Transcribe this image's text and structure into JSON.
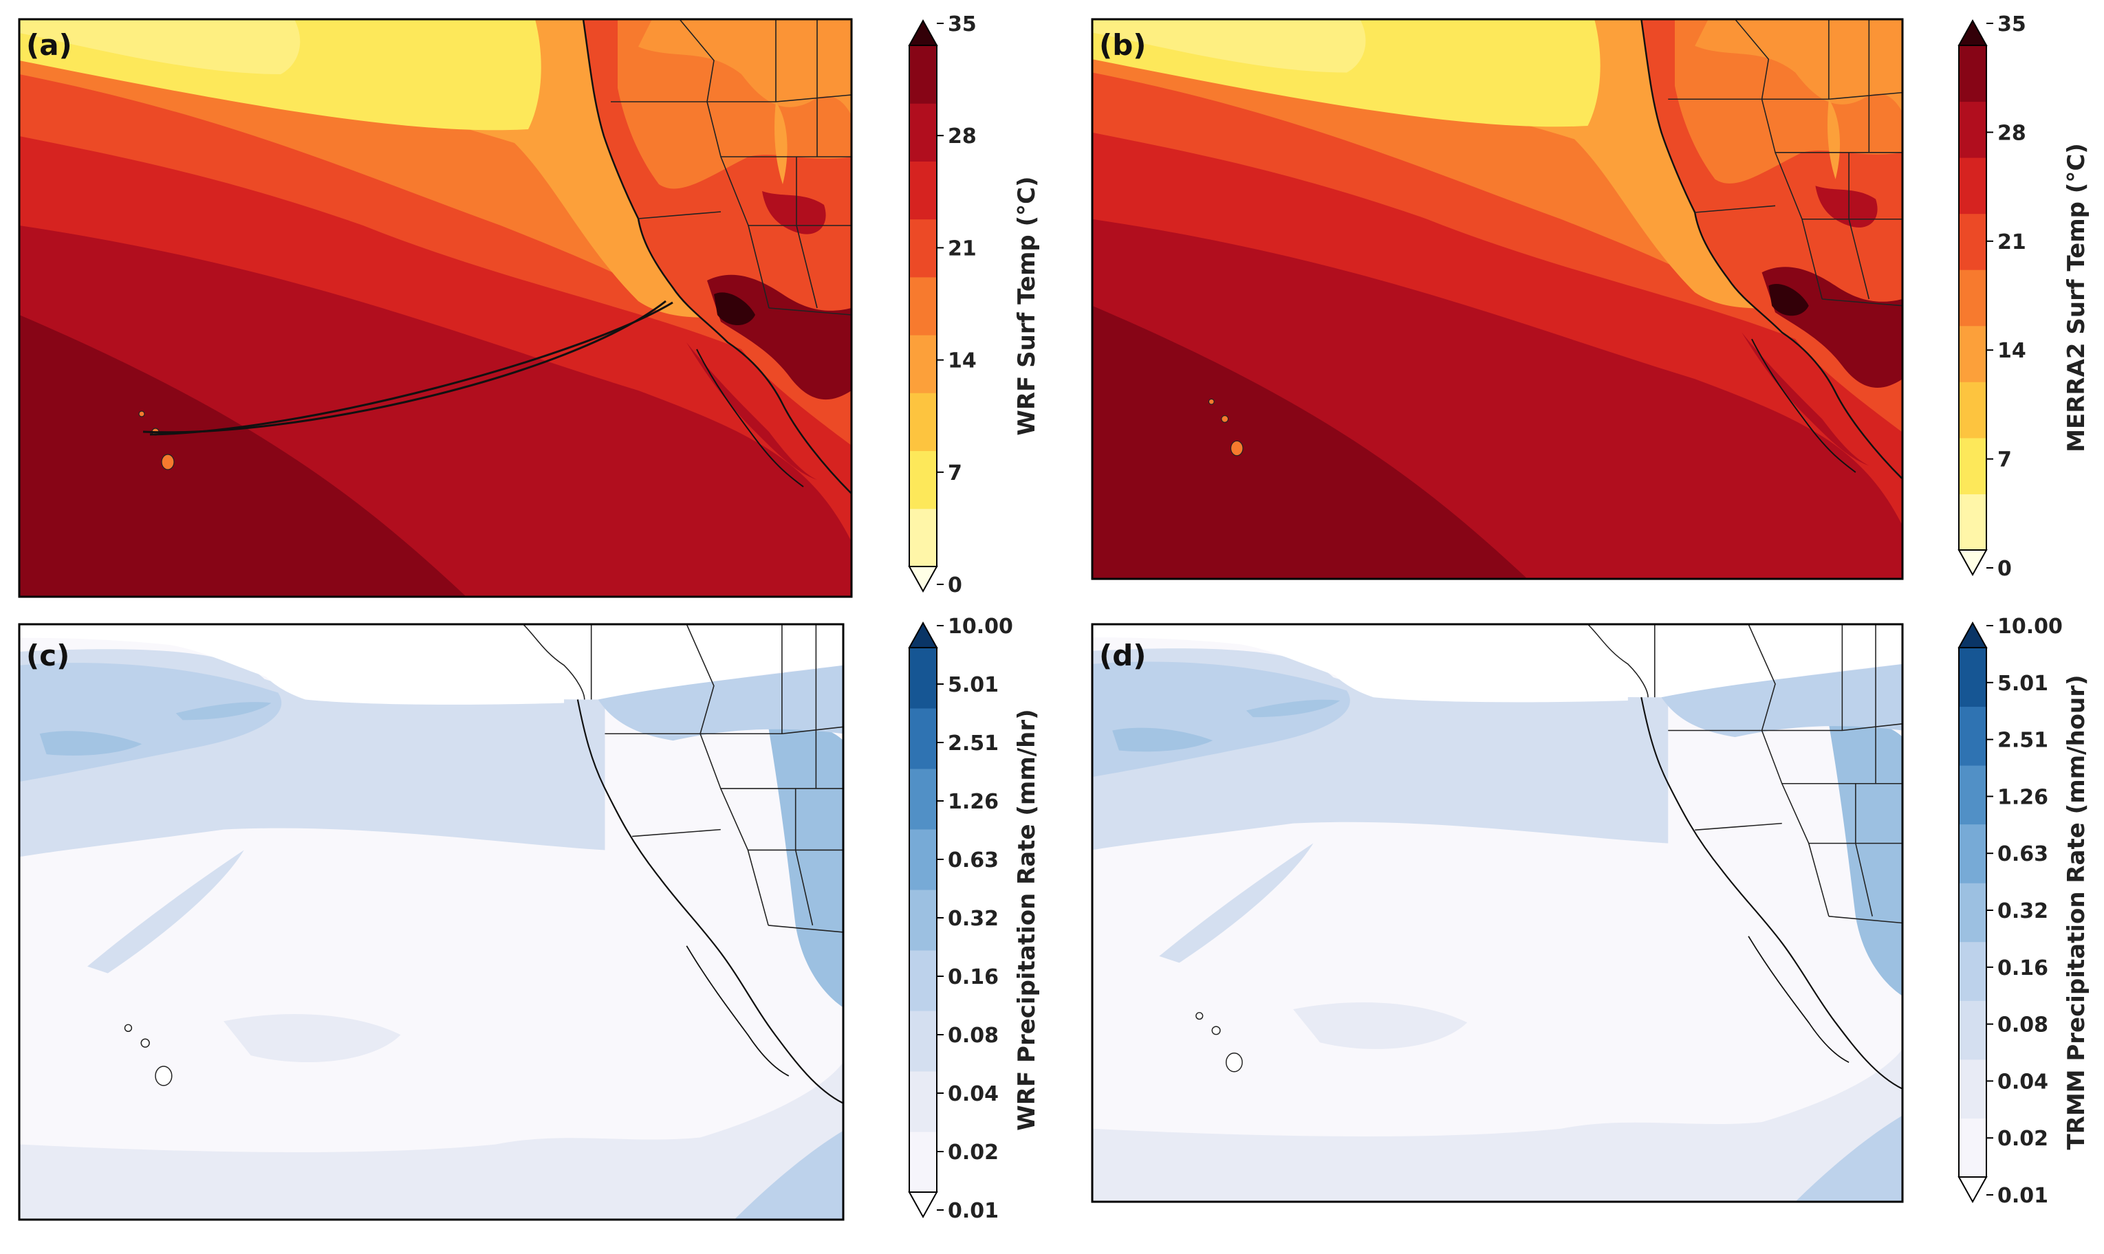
{
  "panels": [
    {
      "id": "a",
      "label": "(a)",
      "colorbar_label": "WRF Surf Temp (°C)",
      "ticks": [
        "0",
        "7",
        "14",
        "21",
        "28",
        "35"
      ],
      "flight_track": true
    },
    {
      "id": "b",
      "label": "(b)",
      "colorbar_label": "MERRA2 Surf Temp (°C)",
      "ticks": [
        "0",
        "7",
        "14",
        "21",
        "28",
        "35"
      ],
      "flight_track": false
    },
    {
      "id": "c",
      "label": "(c)",
      "colorbar_label": "WRF Precipitation Rate (mm/hr)",
      "ticks": [
        "0.01",
        "0.02",
        "0.04",
        "0.08",
        "0.16",
        "0.32",
        "0.63",
        "1.26",
        "2.51",
        "5.01",
        "10.00"
      ]
    },
    {
      "id": "d",
      "label": "(d)",
      "colorbar_label": "TRMM Precipitation Rate (mm/hour)",
      "ticks": [
        "0.01",
        "0.02",
        "0.04",
        "0.08",
        "0.16",
        "0.32",
        "0.63",
        "1.26",
        "2.51",
        "5.01",
        "10.00"
      ]
    }
  ],
  "colors": {
    "temp_scale": [
      "#ffffe6",
      "#fff6a8",
      "#fde85a",
      "#fdc43f",
      "#fca03a",
      "#f77a2e",
      "#ec4a26",
      "#d62320",
      "#b10e1e",
      "#870516",
      "#330008"
    ],
    "precip_scale": [
      "#ffffff",
      "#f6f5fb",
      "#e8ebf5",
      "#d4dff0",
      "#bdd2eb",
      "#9cc0e1",
      "#77aad6",
      "#5190c6",
      "#2f73b2",
      "#165694",
      "#0a3566"
    ],
    "outline": "#000000"
  }
}
